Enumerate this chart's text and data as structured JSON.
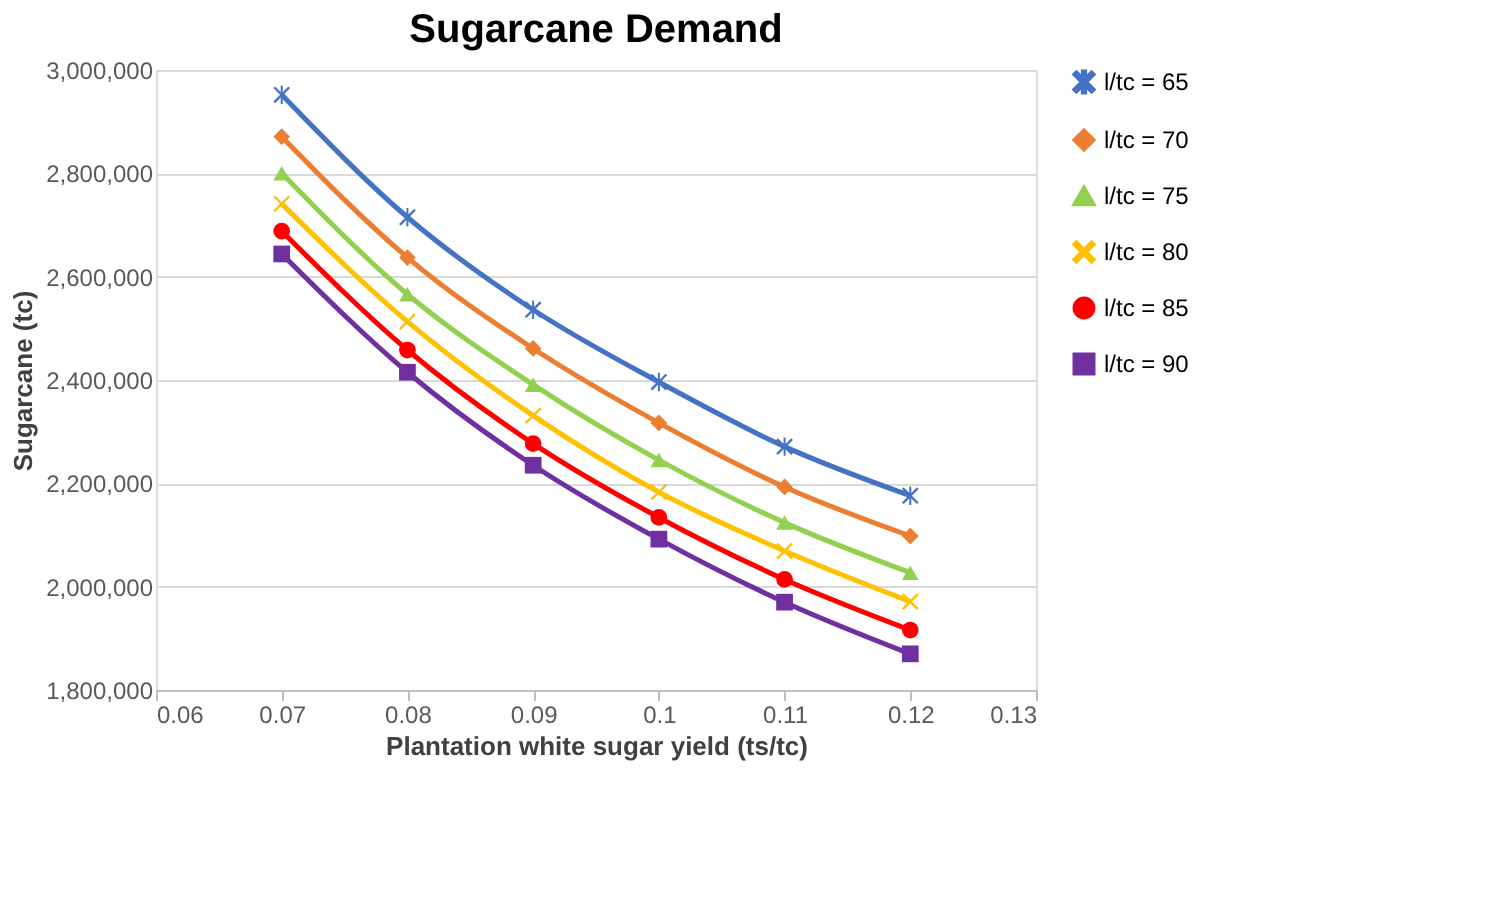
{
  "chart_data": {
    "type": "line",
    "title": "Sugarcane Demand",
    "xlabel": "Plantation white sugar yield (ts/tc)",
    "ylabel": "Sugarcane (tc)",
    "x": [
      0.07,
      0.08,
      0.09,
      0.1,
      0.11,
      0.12
    ],
    "series": [
      {
        "name": "l/tc = 65",
        "color": "#4472c4",
        "marker": "star",
        "values": [
          2952000,
          2715000,
          2536000,
          2396000,
          2271000,
          2176000
        ]
      },
      {
        "name": "l/tc = 70",
        "color": "#ed7d31",
        "marker": "diamond",
        "values": [
          2871000,
          2637000,
          2461000,
          2317000,
          2193000,
          2098000
        ]
      },
      {
        "name": "l/tc = 75",
        "color": "#92d050",
        "marker": "triangle",
        "values": [
          2800000,
          2566000,
          2391000,
          2245000,
          2124000,
          2027000
        ]
      },
      {
        "name": "l/tc = 80",
        "color": "#ffc000",
        "marker": "cross",
        "values": [
          2741000,
          2513000,
          2331000,
          2183000,
          2069000,
          1971000
        ]
      },
      {
        "name": "l/tc = 85",
        "color": "#ff0000",
        "marker": "circle",
        "values": [
          2688000,
          2458000,
          2277000,
          2134000,
          2014000,
          1916000
        ]
      },
      {
        "name": "l/tc = 90",
        "color": "#7030a0",
        "marker": "square",
        "values": [
          2644000,
          2415000,
          2235000,
          2092000,
          1970000,
          1870000
        ]
      }
    ],
    "xlim": [
      0.06,
      0.13
    ],
    "xticks": [
      0.06,
      0.07,
      0.08,
      0.09,
      0.1,
      0.11,
      0.12,
      0.13
    ],
    "ylim": [
      1800000,
      3000000
    ],
    "yticks": [
      {
        "value": 1800000,
        "label": "1,800,000"
      },
      {
        "value": 2000000,
        "label": "2,000,000"
      },
      {
        "value": 2200000,
        "label": "2,200,000"
      },
      {
        "value": 2400000,
        "label": "2,400,000"
      },
      {
        "value": 2600000,
        "label": "2,600,000"
      },
      {
        "value": 2800000,
        "label": "2,800,000"
      },
      {
        "value": 3000000,
        "label": "3,000,000"
      }
    ],
    "grid": "y",
    "legend": "right",
    "line_style": "solid"
  }
}
